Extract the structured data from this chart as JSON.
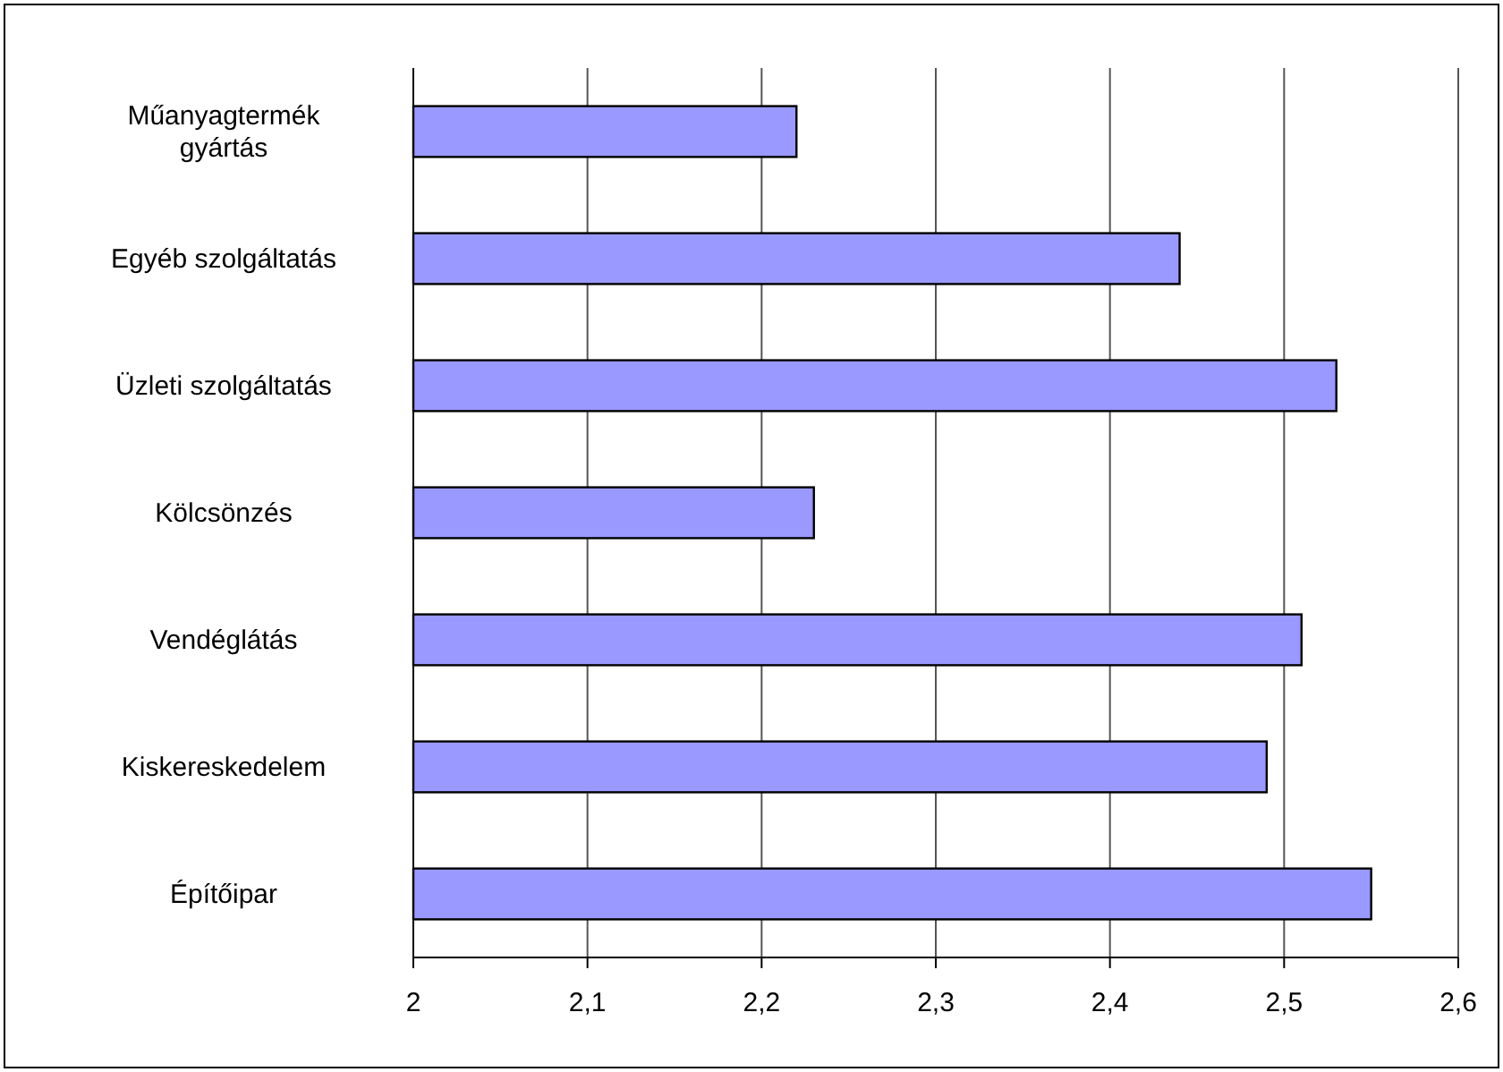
{
  "chart_data": {
    "type": "bar",
    "orientation": "horizontal",
    "categories": [
      "Műanyagtermék gyártás",
      "Egyéb szolgáltatás",
      "Üzleti szolgáltatás",
      "Kölcsönzés",
      "Vendéglátás",
      "Kiskereskedelem",
      "Építőipar"
    ],
    "values": [
      2.22,
      2.44,
      2.53,
      2.23,
      2.51,
      2.49,
      2.55
    ],
    "color": "#9999ff",
    "xlim": [
      2,
      2.6
    ],
    "xticks": [
      2,
      {
        "value": 2.1,
        "label": "2,1"
      },
      {
        "value": 2.2,
        "label": "2,2"
      },
      {
        "value": 2.3,
        "label": "2,3"
      },
      {
        "value": 2.4,
        "label": "2,4"
      },
      {
        "value": 2.5,
        "label": "2,5"
      },
      {
        "value": 2.6,
        "label": "2,6"
      }
    ],
    "grid": "x"
  }
}
